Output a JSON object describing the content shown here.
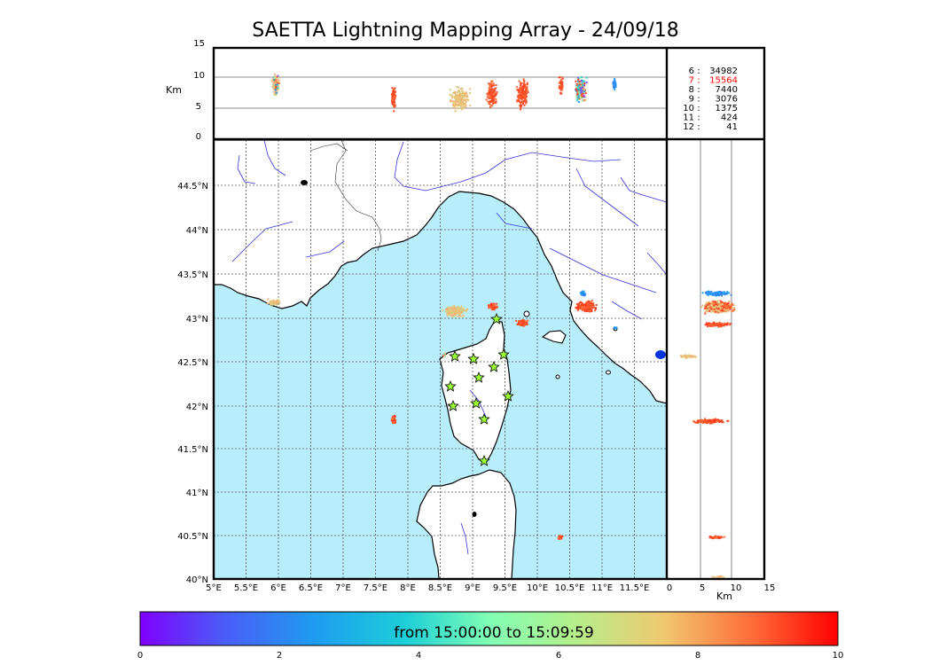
{
  "title": "SAETTA Lightning Mapping Array - 24/09/18",
  "top_panel": {
    "ylabel": "Km",
    "yticks": [
      "15",
      "10",
      "5",
      "0"
    ]
  },
  "side_panel": {
    "xlabel": "Km",
    "xticks": [
      "0",
      "5",
      "10",
      "15"
    ]
  },
  "station_counts": [
    {
      "stations": "6",
      "count": "34982",
      "highlight": false
    },
    {
      "stations": "7",
      "count": "15564",
      "highlight": true
    },
    {
      "stations": "8",
      "count": "7440",
      "highlight": false
    },
    {
      "stations": "9",
      "count": "3076",
      "highlight": false
    },
    {
      "stations": "10",
      "count": "1375",
      "highlight": false
    },
    {
      "stations": "11",
      "count": "424",
      "highlight": false
    },
    {
      "stations": "12",
      "count": "41",
      "highlight": false
    }
  ],
  "map": {
    "lon_ticks": [
      "5°E",
      "5.5°E",
      "6°E",
      "6.5°E",
      "7°E",
      "7.5°E",
      "8°E",
      "8.5°E",
      "9°E",
      "9.5°E",
      "10°E",
      "10.5°E",
      "11°E",
      "11.5°E"
    ],
    "lat_ticks": [
      "44.5°N",
      "44°N",
      "43.5°N",
      "43°N",
      "42.5°N",
      "42°N",
      "41.5°N",
      "41°N",
      "40.5°N",
      "40°N"
    ],
    "sea_color": "#b8eefb",
    "land_color": "#ffffff",
    "river_color": "#3333dd",
    "station_color": "#99ff33"
  },
  "colorbar": {
    "label": "from 15:00:00 to 15:09:59",
    "ticks": [
      "0",
      "2",
      "4",
      "6",
      "8",
      "10"
    ],
    "colormap": "rainbow"
  }
}
